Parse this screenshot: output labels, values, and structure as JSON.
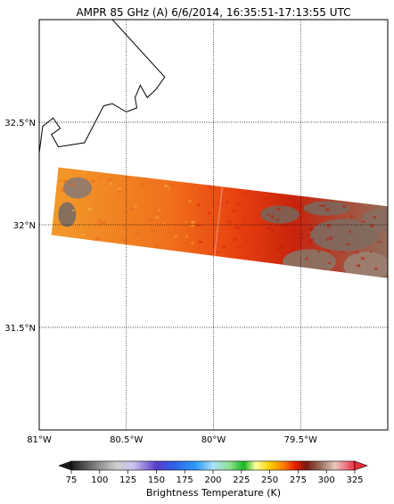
{
  "title": "AMPR 85 GHz (A) 6/6/2014, 16:35:51-17:13:55 UTC",
  "map": {
    "lon_range": [
      -81.0,
      -79.0
    ],
    "lat_range": [
      31.0,
      33.0
    ],
    "grid": true,
    "lon_ticks": [
      {
        "value": -81.0,
        "label": "81°W"
      },
      {
        "value": -80.5,
        "label": "80.5°W"
      },
      {
        "value": -80.0,
        "label": "80°W"
      },
      {
        "value": -79.5,
        "label": "79.5°W"
      }
    ],
    "lat_ticks": [
      {
        "value": 32.5,
        "label": "32.5°N"
      },
      {
        "value": 32.0,
        "label": "32°N"
      },
      {
        "value": 31.5,
        "label": "31.5°N"
      }
    ],
    "swath": {
      "corners_lonlat": [
        [
          -80.89,
          32.28
        ],
        [
          -79.0,
          32.09
        ],
        [
          -79.0,
          31.74
        ],
        [
          -80.93,
          31.95
        ]
      ]
    },
    "coastline_lonlat": [
      [
        -80.58,
        33.0
      ],
      [
        -80.28,
        32.72
      ],
      [
        -80.33,
        32.66
      ],
      [
        -80.38,
        32.62
      ],
      [
        -80.42,
        32.68
      ],
      [
        -80.45,
        32.62
      ],
      [
        -80.44,
        32.57
      ],
      [
        -80.5,
        32.55
      ],
      [
        -80.58,
        32.59
      ],
      [
        -80.63,
        32.58
      ],
      [
        -80.74,
        32.4
      ],
      [
        -80.89,
        32.38
      ],
      [
        -80.93,
        32.44
      ],
      [
        -80.88,
        32.47
      ],
      [
        -80.92,
        32.52
      ],
      [
        -80.98,
        32.48
      ],
      [
        -81.0,
        32.35
      ]
    ]
  },
  "colorbar": {
    "label": "Brightness Temperature (K)",
    "min": 75,
    "max": 325,
    "ticks": [
      75,
      100,
      125,
      150,
      175,
      200,
      225,
      250,
      275,
      300,
      325
    ],
    "extend": "both"
  }
}
